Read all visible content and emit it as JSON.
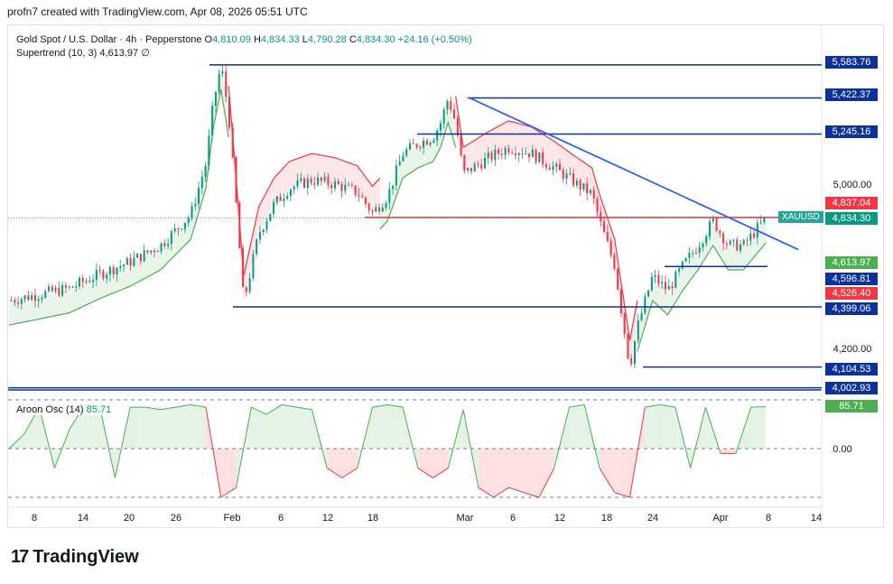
{
  "header": {
    "credit": "profn7 created with TradingView.com, Apr 08, 2026 05:51 UTC"
  },
  "legend": {
    "symbol": "Gold Spot / U.S. Dollar · 4h · Pepperstone",
    "open_label": "O",
    "open": "4,810.09",
    "high_label": "H",
    "high": "4,834.33",
    "low_label": "L",
    "low": "4,790.28",
    "close_label": "C",
    "close": "4,834.30",
    "change": "+24.16 (+0.50%)",
    "supertrend_label": "Supertrend (10, 3)",
    "supertrend_value": "4,613.97",
    "supertrend_icon": "∅"
  },
  "aroon": {
    "label": "Aroon Osc (14)",
    "value": "85.71",
    "axis_top": "85.71",
    "axis_zero": "0.00"
  },
  "symbol_tag": "XAUUSD",
  "colors": {
    "up": "#089981",
    "down": "#f23645",
    "line_blue": "#0c3299",
    "trend_blue": "#2962ff",
    "supertrend_red": "#f23645",
    "supertrend_green": "#4caf50"
  },
  "chart_data": {
    "type": "candlestick",
    "instrument": "XAUUSD",
    "timeframe": "4h",
    "price_axis_ticks": [
      "5,000.00",
      "4,200.00"
    ],
    "x_ticks": [
      "8",
      "14",
      "20",
      "26",
      "Feb",
      "6",
      "12",
      "18",
      "Mar",
      "6",
      "12",
      "18",
      "24",
      "Apr",
      "8",
      "14"
    ],
    "price_tags": [
      {
        "label": "5,583.76",
        "value": 5583.76,
        "color": "#0c3299"
      },
      {
        "label": "5,422.37",
        "value": 5422.37,
        "color": "#0c3299"
      },
      {
        "label": "5,245.16",
        "value": 5245.16,
        "color": "#0c3299"
      },
      {
        "label": "4,837.04",
        "value": 4837.04,
        "color": "#f23645"
      },
      {
        "label": "4,834.30",
        "value": 4834.3,
        "color": "#089981"
      },
      {
        "label": "4,613.97",
        "value": 4613.97,
        "color": "#4caf50"
      },
      {
        "label": "4,596.81",
        "value": 4596.81,
        "color": "#0c3299"
      },
      {
        "label": "4,526.40",
        "value": 4526.4,
        "color": "#f23645"
      },
      {
        "label": "4,399.06",
        "value": 4399.06,
        "color": "#0c3299"
      },
      {
        "label": "4,104.53",
        "value": 4104.53,
        "color": "#0c3299"
      },
      {
        "label": "4,002.93",
        "value": 4002.93,
        "color": "#0c3299"
      }
    ],
    "price_path": [
      [
        0,
        4430
      ],
      [
        4,
        4460
      ],
      [
        8,
        4490
      ],
      [
        12,
        4560
      ],
      [
        16,
        4620
      ],
      [
        20,
        4700
      ],
      [
        24,
        4850
      ],
      [
        26,
        5100
      ],
      [
        27,
        5400
      ],
      [
        28,
        5583
      ],
      [
        29,
        5350
      ],
      [
        30,
        4900
      ],
      [
        31,
        4420
      ],
      [
        33,
        4760
      ],
      [
        35,
        4900
      ],
      [
        37,
        4980
      ],
      [
        40,
        5020
      ],
      [
        43,
        5000
      ],
      [
        46,
        4960
      ],
      [
        48,
        4860
      ],
      [
        50,
        4940
      ],
      [
        52,
        5150
      ],
      [
        54,
        5200
      ],
      [
        56,
        5230
      ],
      [
        57,
        5300
      ],
      [
        58,
        5422
      ],
      [
        59,
        5300
      ],
      [
        60,
        5050
      ],
      [
        63,
        5120
      ],
      [
        66,
        5180
      ],
      [
        69,
        5150
      ],
      [
        72,
        5080
      ],
      [
        75,
        5000
      ],
      [
        77,
        4950
      ],
      [
        78,
        4820
      ],
      [
        80,
        4600
      ],
      [
        81,
        4350
      ],
      [
        82,
        4105
      ],
      [
        83,
        4300
      ],
      [
        85,
        4550
      ],
      [
        87,
        4480
      ],
      [
        89,
        4600
      ],
      [
        91,
        4700
      ],
      [
        93,
        4820
      ],
      [
        95,
        4700
      ],
      [
        97,
        4700
      ],
      [
        99,
        4790
      ],
      [
        100,
        4834
      ]
    ],
    "supertrend": [
      {
        "from": 0,
        "to": 29,
        "trend": "up"
      },
      {
        "from": 29,
        "to": 49,
        "trend": "down"
      },
      {
        "from": 49,
        "to": 59,
        "trend": "up"
      },
      {
        "from": 59,
        "to": 83,
        "trend": "down"
      },
      {
        "from": 83,
        "to": 100,
        "trend": "up"
      }
    ],
    "aroon_osc": [
      [
        0,
        0
      ],
      [
        2,
        30
      ],
      [
        4,
        85
      ],
      [
        6,
        -40
      ],
      [
        8,
        40
      ],
      [
        10,
        90
      ],
      [
        12,
        85
      ],
      [
        14,
        -60
      ],
      [
        16,
        85
      ],
      [
        18,
        85
      ],
      [
        20,
        80
      ],
      [
        22,
        85
      ],
      [
        24,
        90
      ],
      [
        26,
        85
      ],
      [
        28,
        -100
      ],
      [
        30,
        -80
      ],
      [
        32,
        85
      ],
      [
        34,
        70
      ],
      [
        36,
        90
      ],
      [
        38,
        85
      ],
      [
        40,
        80
      ],
      [
        42,
        -40
      ],
      [
        44,
        -60
      ],
      [
        46,
        -40
      ],
      [
        48,
        85
      ],
      [
        50,
        90
      ],
      [
        52,
        85
      ],
      [
        54,
        -40
      ],
      [
        56,
        -60
      ],
      [
        58,
        -40
      ],
      [
        60,
        80
      ],
      [
        62,
        -80
      ],
      [
        64,
        -100
      ],
      [
        66,
        -80
      ],
      [
        68,
        -90
      ],
      [
        70,
        -100
      ],
      [
        72,
        -40
      ],
      [
        74,
        85
      ],
      [
        76,
        90
      ],
      [
        78,
        -40
      ],
      [
        80,
        -90
      ],
      [
        82,
        -100
      ],
      [
        84,
        85
      ],
      [
        86,
        90
      ],
      [
        88,
        85
      ],
      [
        90,
        -40
      ],
      [
        92,
        85
      ],
      [
        94,
        -10
      ],
      [
        96,
        -10
      ],
      [
        98,
        85
      ],
      [
        100,
        86
      ]
    ],
    "aroon_range": [
      -100,
      100
    ]
  }
}
